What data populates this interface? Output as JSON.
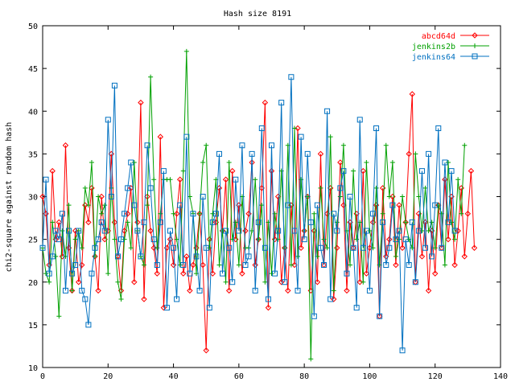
{
  "chart_data": {
    "type": "line",
    "title": "Hash size 8191",
    "xlabel": "",
    "ylabel": "chi2-square against random hash",
    "xlim": [
      0,
      140
    ],
    "ylim": [
      10,
      50
    ],
    "xticks": [
      0,
      20,
      40,
      60,
      80,
      100,
      120,
      140
    ],
    "yticks": [
      10,
      15,
      20,
      25,
      30,
      35,
      40,
      45,
      50
    ],
    "grid": false,
    "legend_position": "top-right",
    "series": [
      {
        "name": "abcd64d",
        "color": "#ff0000",
        "marker": "diamond",
        "values": [
          30,
          28,
          22,
          33,
          25,
          27,
          23,
          36,
          24,
          19,
          26,
          20,
          22,
          29,
          27,
          31,
          23,
          19,
          30,
          25,
          26,
          35,
          27,
          23,
          19,
          26,
          28,
          31,
          20,
          27,
          41,
          18,
          30,
          26,
          24,
          21,
          37,
          17,
          24,
          25,
          22,
          28,
          32,
          21,
          23,
          19,
          22,
          24,
          28,
          22,
          12,
          25,
          21,
          27,
          31,
          26,
          32,
          19,
          33,
          25,
          29,
          21,
          26,
          28,
          34,
          22,
          25,
          31,
          41,
          17,
          33,
          25,
          30,
          20,
          24,
          19,
          29,
          22,
          38,
          24,
          26,
          30,
          19,
          26,
          20,
          35,
          22,
          28,
          31,
          18,
          24,
          34,
          29,
          19,
          27,
          24,
          28,
          20,
          33,
          21,
          24,
          27,
          29,
          16,
          31,
          23,
          25,
          30,
          22,
          29,
          24,
          27,
          35,
          42,
          20,
          28,
          23,
          27,
          19,
          26,
          21,
          29,
          24,
          32,
          25,
          30,
          22,
          26,
          31,
          23,
          28,
          33,
          24
        ]
      },
      {
        "name": "jenkins2b",
        "color": "#00a000",
        "marker": "plus",
        "values": [
          24,
          21,
          20,
          27,
          23,
          16,
          26,
          23,
          29,
          19,
          25,
          26,
          24,
          31,
          29,
          34,
          23,
          30,
          28,
          29,
          21,
          31,
          25,
          20,
          18,
          25,
          27,
          24,
          34,
          26,
          23,
          22,
          29,
          44,
          32,
          24,
          28,
          32,
          32,
          32,
          28,
          25,
          22,
          33,
          47,
          30,
          28,
          21,
          28,
          34,
          36,
          24,
          28,
          32,
          22,
          26,
          20,
          34,
          25,
          27,
          22,
          30,
          24,
          24,
          26,
          32,
          25,
          29,
          20,
          27,
          21,
          28,
          25,
          33,
          24,
          36,
          22,
          38,
          23,
          32,
          26,
          30,
          11,
          28,
          23,
          31,
          25,
          24,
          37,
          19,
          27,
          30,
          36,
          26,
          22,
          33,
          25,
          27,
          20,
          34,
          26,
          24,
          31,
          22,
          28,
          36,
          30,
          34,
          23,
          25,
          30,
          27,
          25,
          24,
          35,
          30,
          26,
          31,
          26,
          27,
          24,
          29,
          28,
          22,
          34,
          27,
          25,
          32,
          28,
          36
        ]
      },
      {
        "name": "jenkins64",
        "color": "#0070c0",
        "marker": "square",
        "values": [
          24,
          32,
          21,
          23,
          26,
          25,
          28,
          19,
          26,
          21,
          22,
          26,
          19,
          18,
          15,
          21,
          24,
          25,
          27,
          26,
          39,
          30,
          43,
          23,
          25,
          28,
          31,
          34,
          29,
          26,
          23,
          27,
          36,
          31,
          25,
          22,
          27,
          33,
          17,
          26,
          24,
          18,
          29,
          22,
          37,
          21,
          28,
          23,
          19,
          30,
          24,
          17,
          27,
          28,
          35,
          21,
          26,
          24,
          20,
          32,
          26,
          36,
          22,
          23,
          35,
          19,
          27,
          38,
          24,
          18,
          36,
          21,
          26,
          41,
          20,
          29,
          44,
          26,
          19,
          37,
          25,
          35,
          27,
          16,
          29,
          24,
          22,
          40,
          18,
          28,
          26,
          31,
          33,
          21,
          30,
          24,
          17,
          39,
          24,
          26,
          19,
          28,
          38,
          16,
          27,
          22,
          24,
          29,
          25,
          26,
          12,
          25,
          22,
          27,
          20,
          26,
          33,
          24,
          35,
          23,
          29,
          38,
          24,
          34,
          27,
          33,
          26
        ]
      }
    ]
  }
}
